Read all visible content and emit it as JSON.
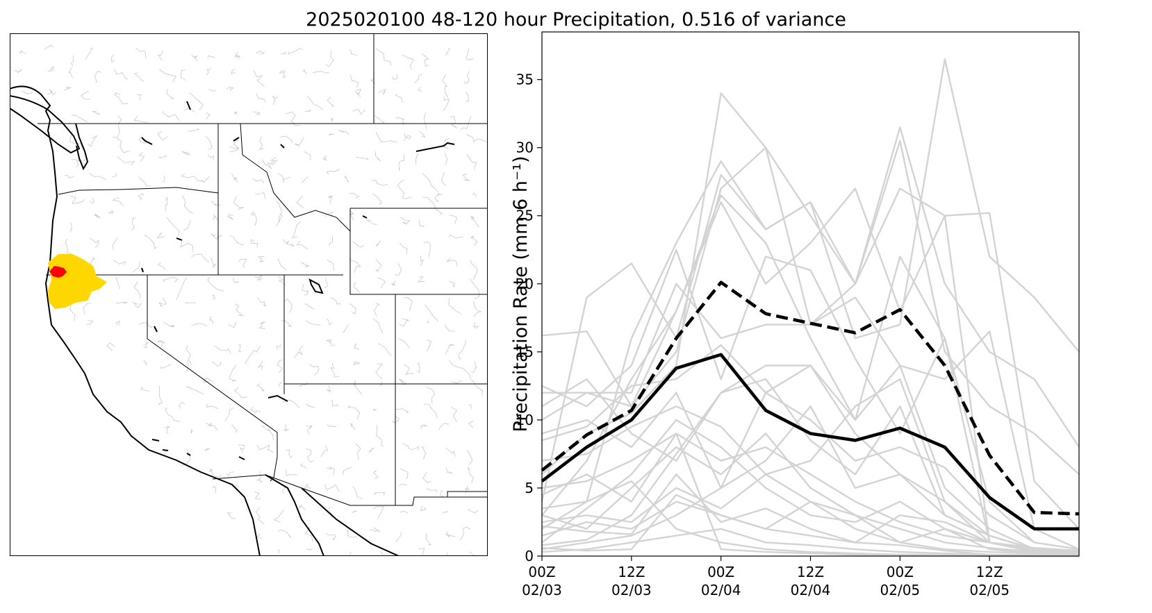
{
  "figure": {
    "title": "2025020100 48-120 hour Precipitation, 0.516 of variance"
  },
  "map": {
    "colors": {
      "region_fill": "#ffd700",
      "point_fill": "#ff0000",
      "basin_lines": "#c8c8c8",
      "boundaries": "#000000"
    }
  },
  "chart_data": {
    "type": "line",
    "title": "",
    "xlabel": "",
    "ylabel": "Precipitation Rate (mm 6 h⁻¹)",
    "ylim": [
      0,
      38.5
    ],
    "yticks": [
      0,
      5,
      10,
      15,
      20,
      25,
      30,
      35
    ],
    "x": [
      "00Z 02/03",
      "06Z 02/03",
      "12Z 02/03",
      "18Z 02/03",
      "00Z 02/04",
      "06Z 02/04",
      "12Z 02/04",
      "18Z 02/04",
      "00Z 02/05",
      "06Z 02/05",
      "12Z 02/05",
      "18Z 02/05",
      "00Z 02/06"
    ],
    "xticks": [
      {
        "at": "00Z 02/03",
        "line1": "00Z",
        "line2": "02/03"
      },
      {
        "at": "12Z 02/03",
        "line1": "12Z",
        "line2": "02/03"
      },
      {
        "at": "00Z 02/04",
        "line1": "00Z",
        "line2": "02/04"
      },
      {
        "at": "12Z 02/04",
        "line1": "12Z",
        "line2": "02/04"
      },
      {
        "at": "00Z 02/05",
        "line1": "00Z",
        "line2": "02/05"
      },
      {
        "at": "12Z 02/05",
        "line1": "12Z",
        "line2": "02/05"
      }
    ],
    "grid": false,
    "legend": "none",
    "colors": {
      "members": "#d3d3d3",
      "mean": "#000000",
      "upper": "#000000"
    },
    "series": [
      {
        "role": "mean",
        "style": "solid",
        "values": [
          5.5,
          8.0,
          10.0,
          13.8,
          14.8,
          10.7,
          9.0,
          8.5,
          9.4,
          8.0,
          4.3,
          2.0,
          2.0
        ]
      },
      {
        "role": "upper",
        "style": "dashed",
        "values": [
          6.3,
          8.9,
          10.7,
          16.0,
          20.1,
          17.8,
          17.1,
          16.4,
          18.1,
          14.0,
          7.4,
          3.2,
          3.1
        ]
      },
      {
        "role": "member",
        "values": [
          6.0,
          9.0,
          10.5,
          14.0,
          34.0,
          30.0,
          25.0,
          20.0,
          31.5,
          20.0,
          15.0,
          13.0,
          8.0
        ]
      },
      {
        "role": "member",
        "values": [
          4.0,
          19.0,
          21.5,
          16.0,
          28.0,
          24.0,
          26.0,
          16.0,
          17.0,
          36.5,
          22.0,
          19.0,
          15.0
        ]
      },
      {
        "role": "member",
        "values": [
          10.0,
          12.0,
          11.0,
          15.0,
          27.0,
          30.0,
          17.0,
          20.0,
          30.5,
          15.0,
          11.0,
          9.0,
          6.0
        ]
      },
      {
        "role": "member",
        "values": [
          3.0,
          7.0,
          13.0,
          18.0,
          26.0,
          20.0,
          23.0,
          27.0,
          18.0,
          25.0,
          25.2,
          5.5,
          2.0
        ]
      },
      {
        "role": "member",
        "values": [
          2.0,
          4.0,
          16.0,
          23.0,
          29.0,
          24.0,
          26.0,
          20.0,
          27.0,
          25.0,
          1.0,
          0.5,
          0.3
        ]
      },
      {
        "role": "member",
        "values": [
          16.2,
          16.5,
          11.0,
          18.0,
          26.5,
          23.0,
          16.0,
          10.0,
          22.0,
          16.0,
          4.0,
          1.0,
          0.5
        ]
      },
      {
        "role": "member",
        "values": [
          12.0,
          12.0,
          12.0,
          20.0,
          16.0,
          17.0,
          17.0,
          19.0,
          14.0,
          13.0,
          16.5,
          2.0,
          0.5
        ]
      },
      {
        "role": "member",
        "values": [
          12.5,
          11.0,
          14.0,
          22.5,
          13.0,
          22.0,
          21.0,
          14.5,
          9.0,
          16.0,
          1.0,
          0.3,
          0.2
        ]
      },
      {
        "role": "member",
        "values": [
          11.0,
          13.0,
          9.0,
          7.0,
          12.0,
          14.0,
          14.0,
          10.0,
          14.0,
          5.0,
          2.0,
          0.5,
          0.2
        ]
      },
      {
        "role": "member",
        "values": [
          9.0,
          10.0,
          8.0,
          12.0,
          5.0,
          7.0,
          11.0,
          5.0,
          6.0,
          4.0,
          1.5,
          0.5,
          0.1
        ]
      },
      {
        "role": "member",
        "values": [
          4.5,
          6.0,
          4.0,
          9.0,
          7.0,
          8.0,
          6.0,
          4.0,
          2.5,
          1.5,
          1.0,
          0.3,
          0.1
        ]
      },
      {
        "role": "member",
        "values": [
          3.0,
          2.0,
          5.0,
          8.0,
          6.0,
          9.0,
          5.0,
          3.0,
          1.0,
          2.0,
          0.5,
          0.2,
          0.1
        ]
      },
      {
        "role": "member",
        "values": [
          1.5,
          2.5,
          2.0,
          4.0,
          3.0,
          2.0,
          4.0,
          2.0,
          1.0,
          0.5,
          0.3,
          0.2,
          0.1
        ]
      },
      {
        "role": "member",
        "values": [
          2.2,
          1.8,
          1.6,
          6.0,
          2.5,
          3.5,
          2.0,
          1.0,
          0.8,
          0.4,
          0.1,
          0.1,
          0.0
        ]
      },
      {
        "role": "member",
        "values": [
          0.8,
          1.2,
          3.0,
          7.5,
          12.0,
          13.0,
          8.5,
          6.0,
          11.0,
          3.0,
          1.5,
          0.5,
          0.2
        ]
      },
      {
        "role": "member",
        "values": [
          7.0,
          7.5,
          9.5,
          11.0,
          9.5,
          6.0,
          4.0,
          3.0,
          2.0,
          1.0,
          0.6,
          0.3,
          0.1
        ]
      },
      {
        "role": "member",
        "values": [
          1.0,
          3.5,
          6.0,
          10.0,
          8.0,
          5.0,
          3.0,
          2.5,
          4.0,
          2.0,
          1.0,
          0.6,
          0.4
        ]
      },
      {
        "role": "member",
        "values": [
          5.0,
          5.5,
          7.0,
          9.0,
          0.5,
          0.3,
          0.2,
          0.1,
          0.1,
          0.1,
          0.0,
          0.0,
          0.0
        ]
      },
      {
        "role": "member",
        "values": [
          0.5,
          1.0,
          1.5,
          3.0,
          5.0,
          12.0,
          14.0,
          9.0,
          6.0,
          3.0,
          1.5,
          0.5,
          0.2
        ]
      },
      {
        "role": "member",
        "values": [
          2.5,
          3.0,
          2.5,
          5.0,
          3.5,
          6.0,
          7.0,
          11.0,
          13.0,
          4.0,
          1.0,
          0.4,
          0.1
        ]
      },
      {
        "role": "member",
        "values": [
          0.3,
          0.5,
          1.0,
          1.5,
          2.0,
          1.0,
          0.8,
          0.5,
          0.3,
          0.2,
          0.1,
          0.0,
          0.0
        ]
      },
      {
        "role": "member",
        "values": [
          8.5,
          9.5,
          12.5,
          13.0,
          15.5,
          12.0,
          10.0,
          7.0,
          8.0,
          6.5,
          3.0,
          1.0,
          0.5
        ]
      },
      {
        "role": "member",
        "values": [
          0.6,
          0.4,
          0.5,
          4.5,
          3.0,
          2.0,
          1.5,
          1.0,
          3.0,
          2.5,
          1.0,
          0.5,
          0.3
        ]
      },
      {
        "role": "member",
        "values": [
          3.5,
          4.0,
          5.5,
          2.0,
          1.0,
          0.5,
          0.3,
          0.2,
          0.1,
          0.1,
          0.0,
          0.0,
          0.0
        ]
      }
    ]
  }
}
